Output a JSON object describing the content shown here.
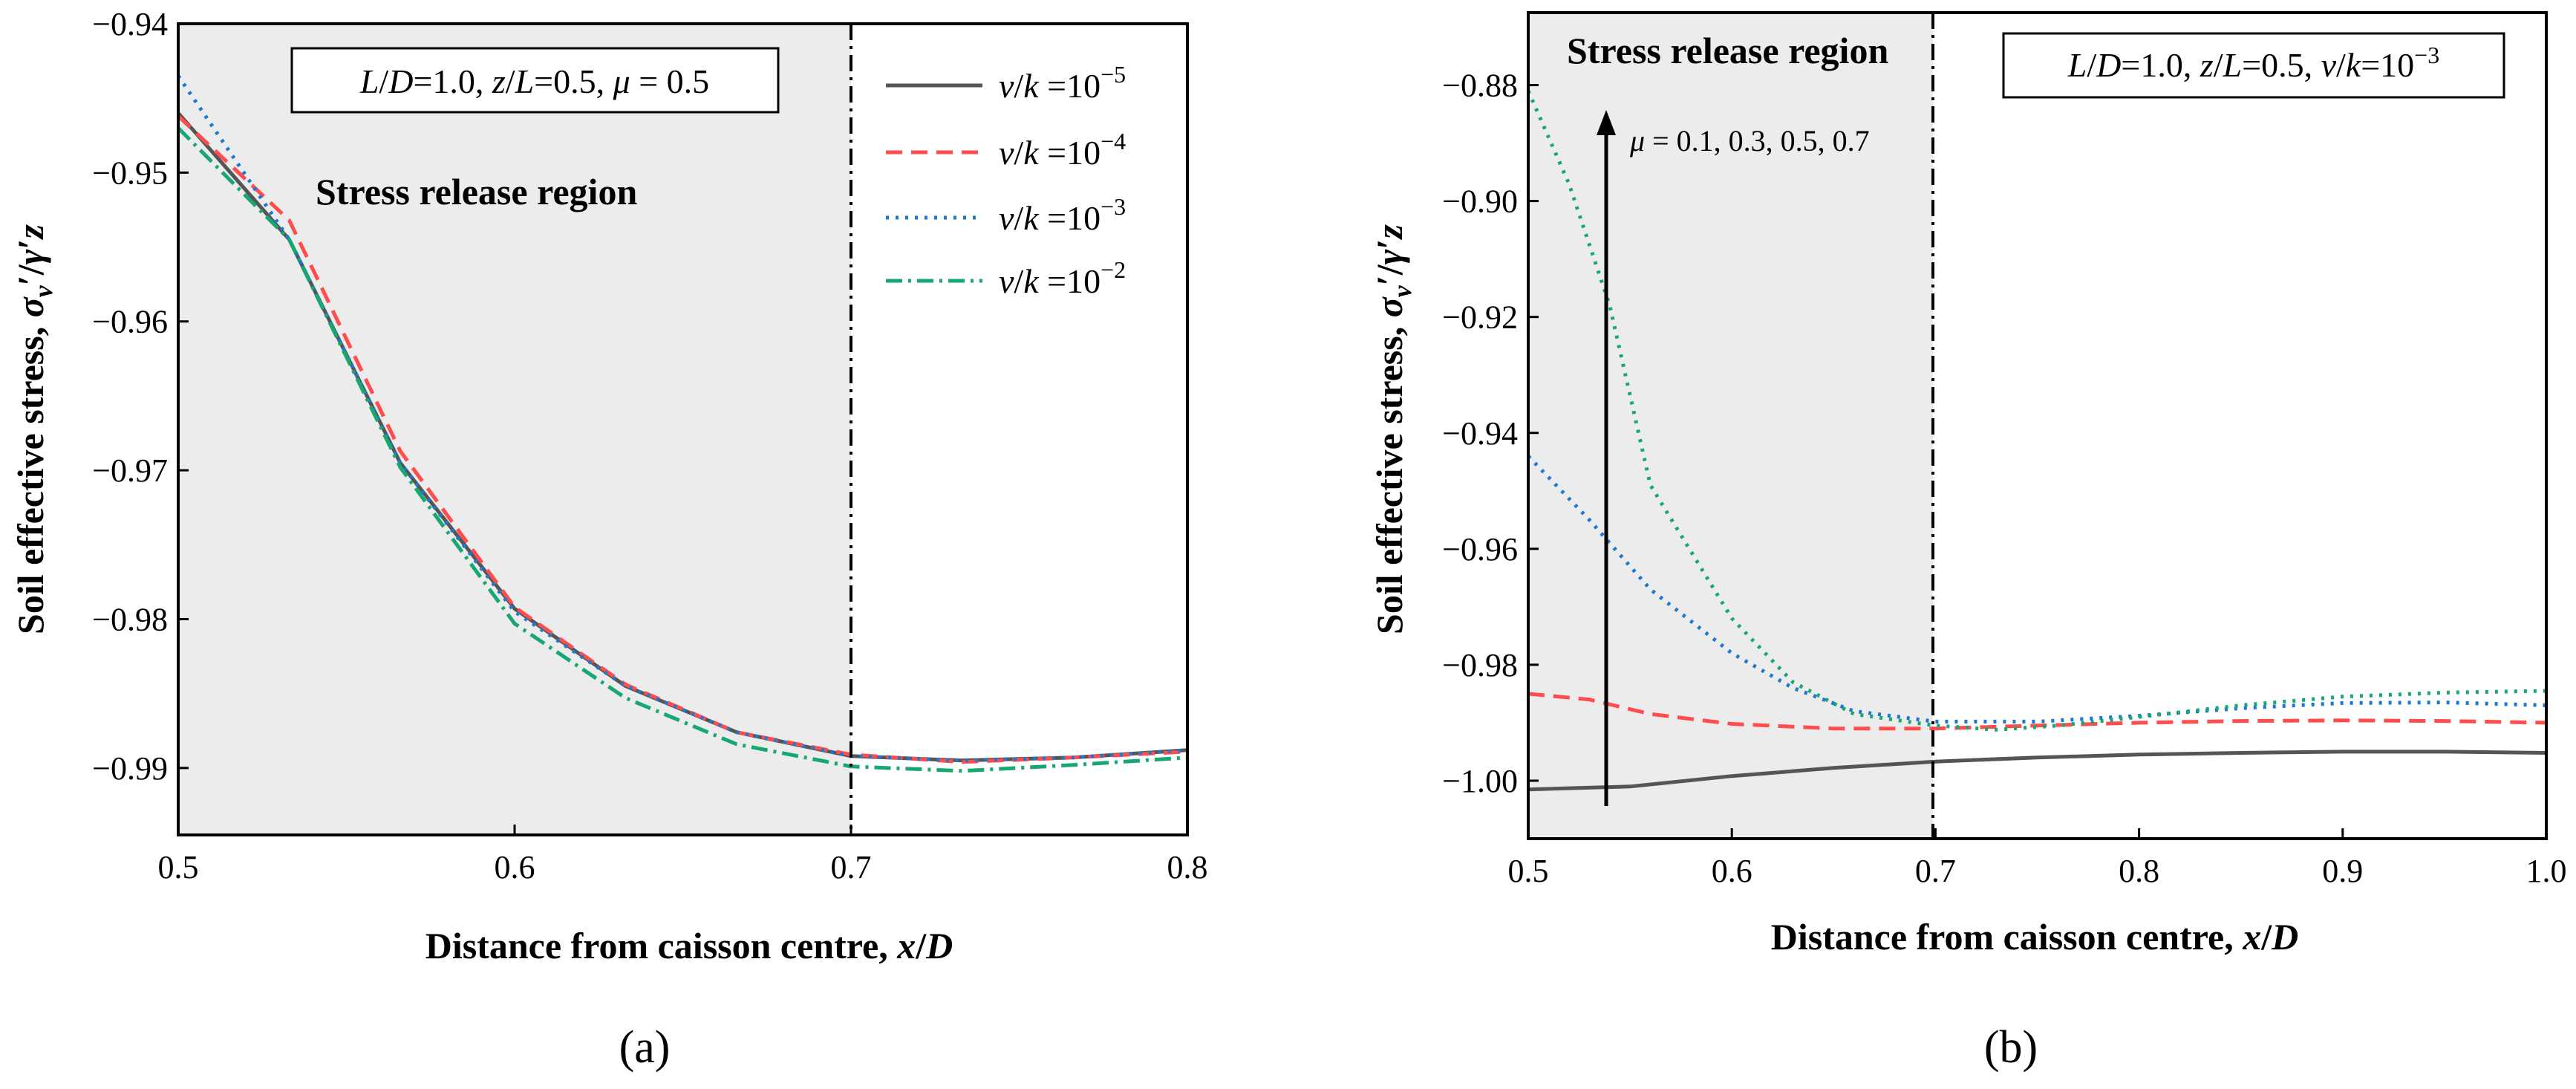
{
  "chart_data": [
    {
      "type": "line",
      "panel_label": "(a)",
      "xlabel": "Distance from caisson centre, x/D",
      "ylabel": "Soil effective stress, σv′/γ′z",
      "xlim": [
        0.5,
        0.8
      ],
      "ylim": [
        -0.9945,
        -0.94
      ],
      "x_ticks": [
        "0.5",
        "0.6",
        "0.7",
        "0.8"
      ],
      "x_tick_values": [
        0.5,
        0.6,
        0.7,
        0.8
      ],
      "y_ticks": [
        "-0.94",
        "-0.95",
        "-0.96",
        "-0.97",
        "-0.98",
        "-0.99"
      ],
      "y_tick_values": [
        -0.94,
        -0.95,
        -0.96,
        -0.97,
        -0.98,
        -0.99
      ],
      "shaded_region": {
        "x": [
          0.5,
          0.7
        ],
        "label": "Stress release region"
      },
      "divider_x": 0.7,
      "parameter_box": "L/D=1.0, z/L=0.5, μ = 0.5",
      "legend_position": "top-right",
      "series": [
        {
          "name": "v/k = 10^-5",
          "legend_exp": "−5",
          "color": "#555555",
          "dash": "solid",
          "x": [
            0.5,
            0.533,
            0.566,
            0.6,
            0.633,
            0.666,
            0.7,
            0.733,
            0.766,
            0.8
          ],
          "y": [
            -0.946,
            -0.9545,
            -0.9695,
            -0.9793,
            -0.9845,
            -0.9876,
            -0.9892,
            -0.9895,
            -0.9893,
            -0.9888
          ]
        },
        {
          "name": "v/k = 10^-4",
          "legend_exp": "−4",
          "color": "#ff4d4d",
          "dash": "dashed",
          "x": [
            0.5,
            0.533,
            0.566,
            0.6,
            0.633,
            0.666,
            0.7,
            0.733,
            0.766,
            0.8
          ],
          "y": [
            -0.9462,
            -0.9532,
            -0.9687,
            -0.9792,
            -0.9844,
            -0.9876,
            -0.9891,
            -0.9896,
            -0.9893,
            -0.9889
          ]
        },
        {
          "name": "v/k = 10^-3",
          "legend_exp": "−3",
          "color": "#1e78d2",
          "dash": "dotted",
          "x": [
            0.5,
            0.533,
            0.566,
            0.6,
            0.633,
            0.666,
            0.7,
            0.733,
            0.766,
            0.8
          ],
          "y": [
            -0.9435,
            -0.9545,
            -0.9695,
            -0.9795,
            -0.9845,
            -0.9876,
            -0.9892,
            -0.9895,
            -0.9893,
            -0.9888
          ]
        },
        {
          "name": "v/k = 10^-2",
          "legend_exp": "−2",
          "color": "#16a870",
          "dash": "dashdot",
          "x": [
            0.5,
            0.533,
            0.566,
            0.6,
            0.633,
            0.666,
            0.7,
            0.733,
            0.766,
            0.8
          ],
          "y": [
            -0.947,
            -0.9545,
            -0.9698,
            -0.9803,
            -0.9853,
            -0.9884,
            -0.9899,
            -0.9902,
            -0.9898,
            -0.9893
          ]
        }
      ]
    },
    {
      "type": "line",
      "panel_label": "(b)",
      "xlabel": "Distance from caisson centre, x/D",
      "ylabel": "Soil effective stress, σv′/γ′z",
      "xlim": [
        0.5,
        1.0
      ],
      "ylim": [
        -1.01,
        -0.8675
      ],
      "x_ticks": [
        "0.5",
        "0.6",
        "0.7",
        "0.8",
        "0.9",
        "1.0"
      ],
      "x_tick_values": [
        0.5,
        0.6,
        0.7,
        0.8,
        0.9,
        1.0
      ],
      "y_ticks": [
        "-0.88",
        "-0.90",
        "-0.92",
        "-0.94",
        "-0.96",
        "-0.98",
        "-1.00"
      ],
      "y_tick_values": [
        -0.88,
        -0.9,
        -0.92,
        -0.94,
        -0.96,
        -0.98,
        -1.0
      ],
      "shaded_region": {
        "x": [
          0.5,
          0.7
        ],
        "label": "Stress release region"
      },
      "divider_x": 0.7,
      "parameter_box": "L/D=1.0, z/L=0.5, v/k=10^-3",
      "arrow_label": "μ = 0.1, 0.3, 0.5, 0.7",
      "series": [
        {
          "name": "μ = 0.1",
          "color": "#555555",
          "dash": "solid",
          "x": [
            0.5,
            0.55,
            0.6,
            0.65,
            0.7,
            0.75,
            0.8,
            0.85,
            0.9,
            0.95,
            1.0
          ],
          "y": [
            -1.0015,
            -1.001,
            -0.9992,
            -0.9978,
            -0.9967,
            -0.996,
            -0.9955,
            -0.9952,
            -0.995,
            -0.995,
            -0.9952
          ]
        },
        {
          "name": "μ = 0.3",
          "color": "#ff4d4d",
          "dash": "dashed",
          "x": [
            0.5,
            0.53,
            0.56,
            0.6,
            0.65,
            0.7,
            0.75,
            0.8,
            0.85,
            0.9,
            0.95,
            1.0
          ],
          "y": [
            -0.985,
            -0.986,
            -0.9885,
            -0.9902,
            -0.991,
            -0.991,
            -0.9905,
            -0.99,
            -0.9897,
            -0.9896,
            -0.9897,
            -0.99
          ]
        },
        {
          "name": "μ = 0.5",
          "color": "#1e78d2",
          "dash": "dotted",
          "x": [
            0.5,
            0.53,
            0.56,
            0.6,
            0.63,
            0.66,
            0.7,
            0.75,
            0.8,
            0.85,
            0.9,
            0.95,
            1.0
          ],
          "y": [
            -0.944,
            -0.955,
            -0.967,
            -0.978,
            -0.984,
            -0.988,
            -0.9898,
            -0.9898,
            -0.9888,
            -0.9875,
            -0.9866,
            -0.9865,
            -0.987
          ]
        },
        {
          "name": "μ = 0.7",
          "color": "#16a870",
          "dash": "dotted",
          "x": [
            0.5,
            0.52,
            0.54,
            0.56,
            0.6,
            0.63,
            0.66,
            0.7,
            0.73,
            0.76,
            0.8,
            0.85,
            0.9,
            0.95,
            1.0
          ],
          "y": [
            -0.881,
            -0.897,
            -0.918,
            -0.949,
            -0.972,
            -0.983,
            -0.9885,
            -0.9905,
            -0.9912,
            -0.9905,
            -0.989,
            -0.987,
            -0.9855,
            -0.9848,
            -0.9845
          ]
        }
      ]
    }
  ]
}
